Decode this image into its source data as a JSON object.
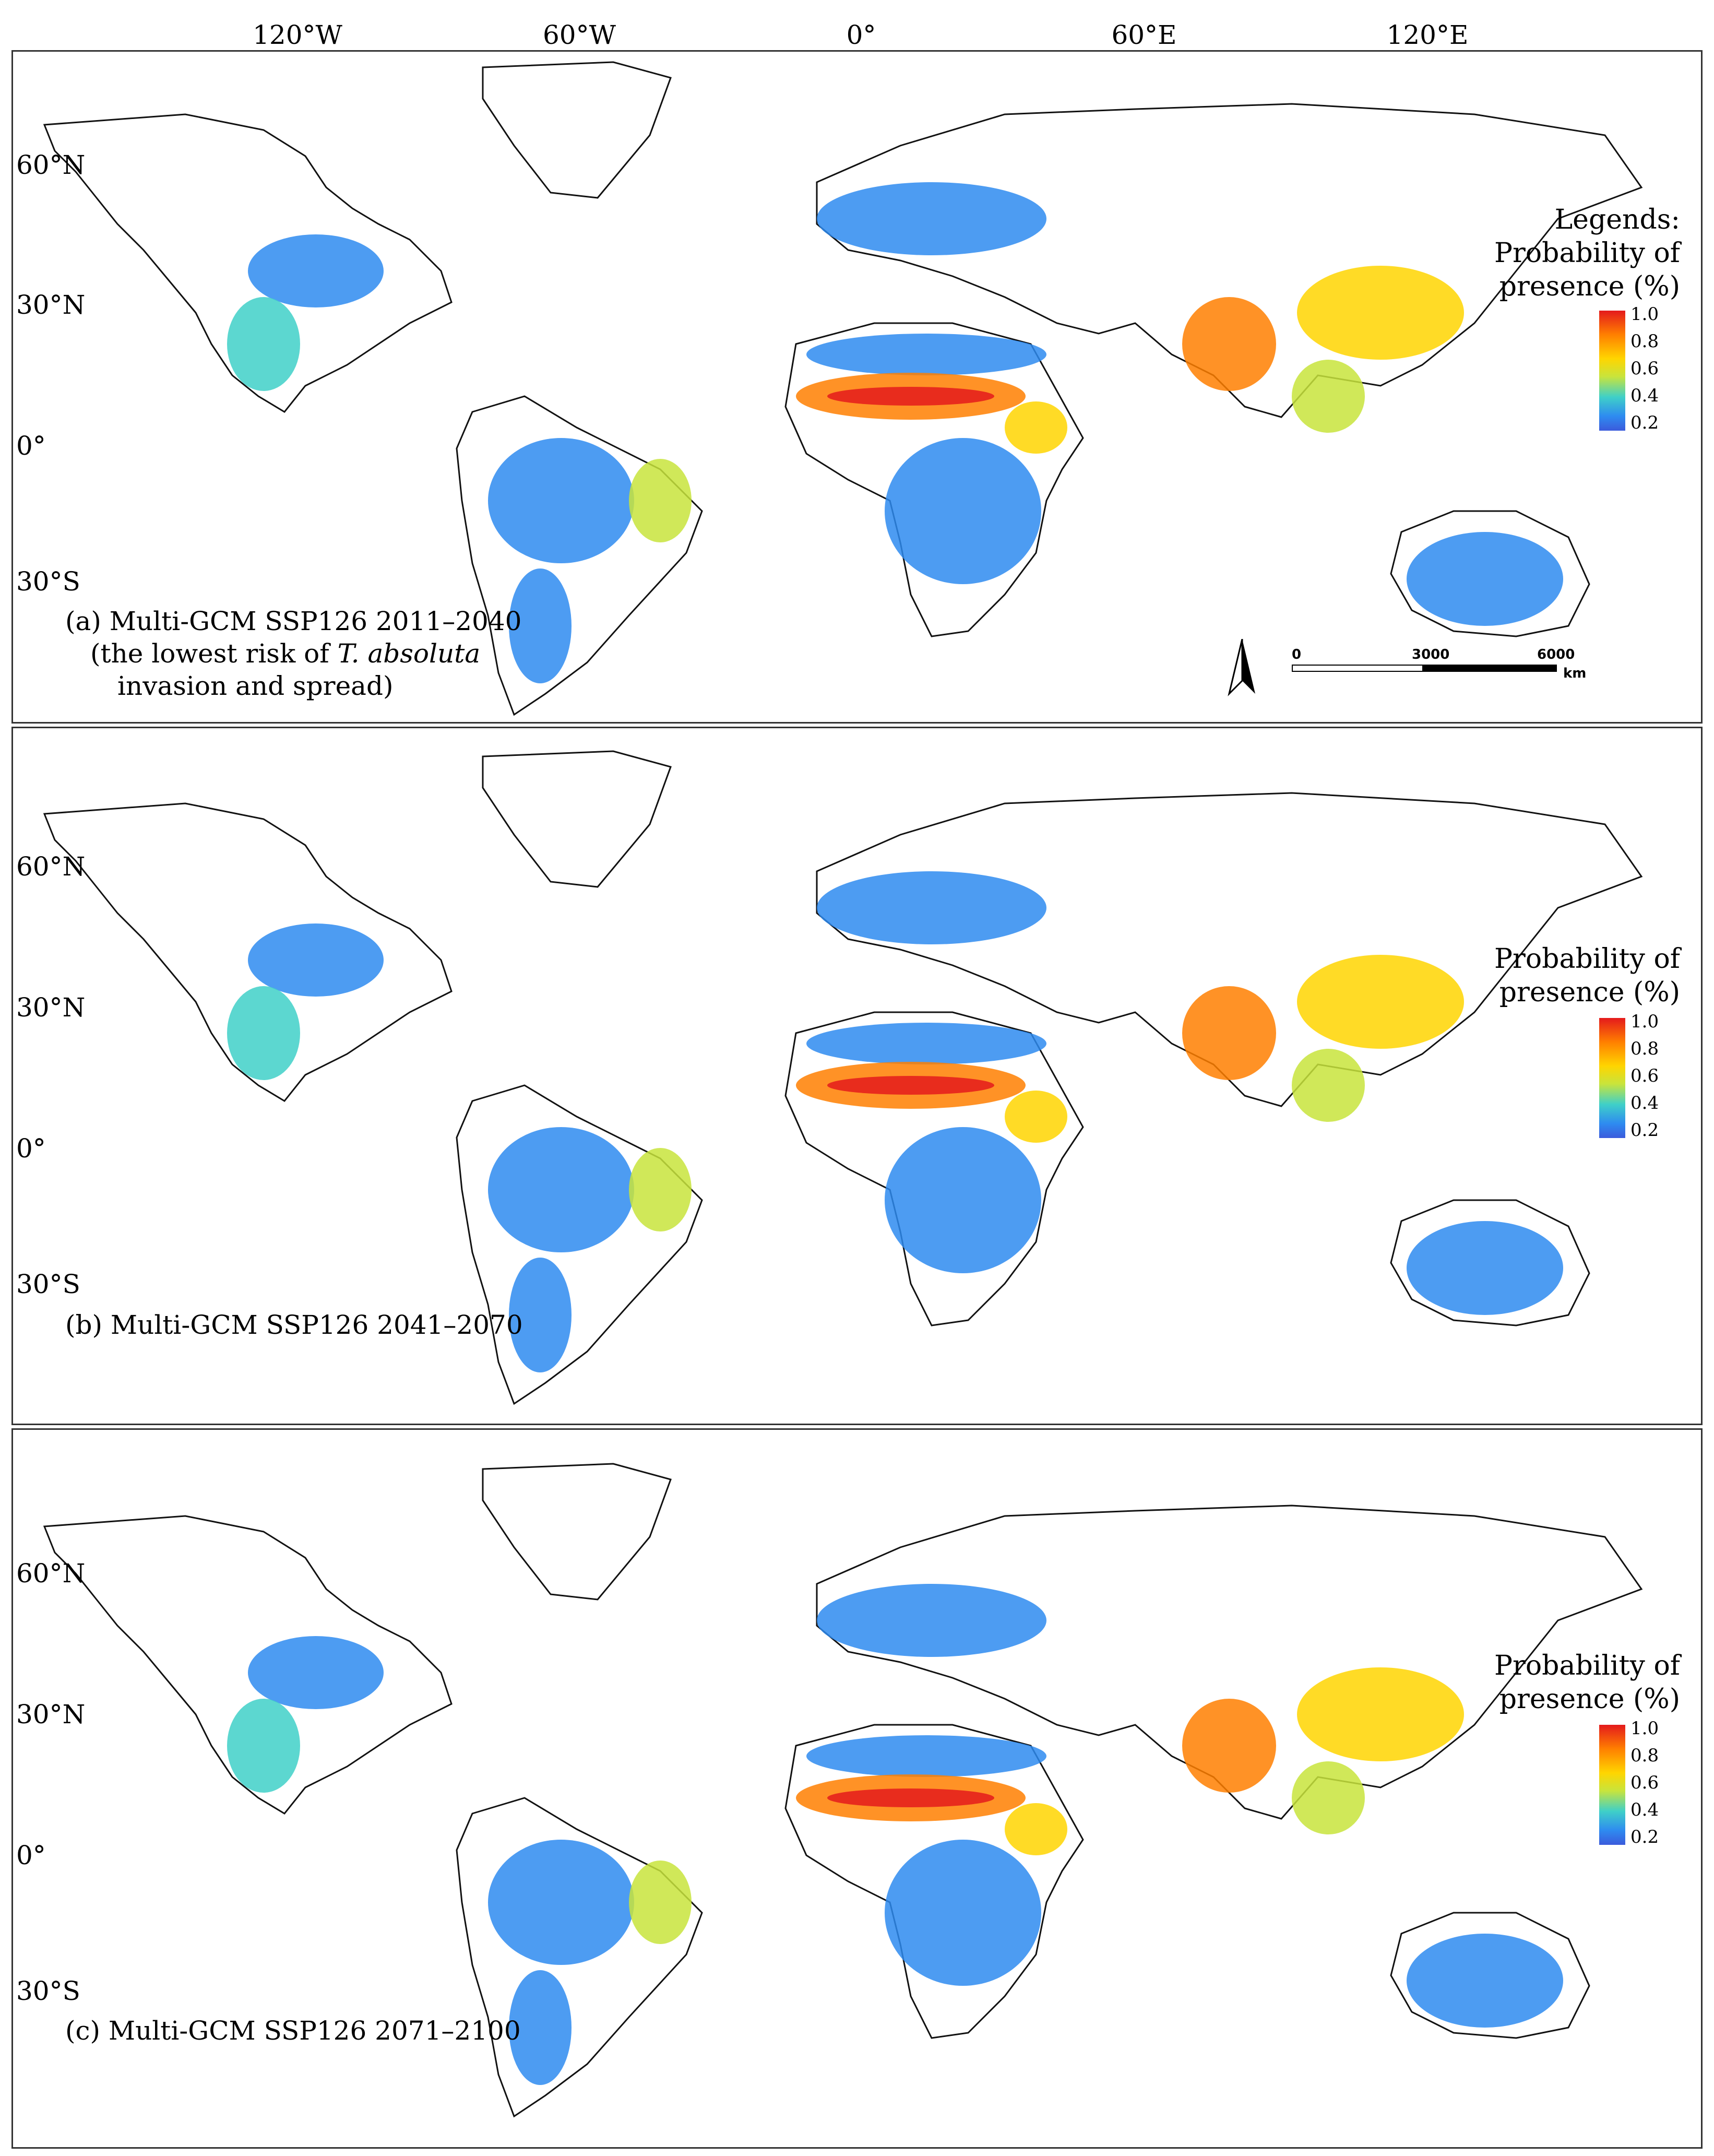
{
  "longitude_labels": [
    "120°W",
    "60°W",
    "0°",
    "60°E",
    "120°E"
  ],
  "latitude_labels": [
    "60°N",
    "30°N",
    "0°",
    "30°S"
  ],
  "legend": {
    "heading": "Legends:",
    "title_line1": "Probability of",
    "title_line2": "presence (%)",
    "ticks": [
      "1.0",
      "0.8",
      "0.6",
      "0.4",
      "0.2"
    ],
    "colors": [
      "#e41a1c",
      "#ff7f00",
      "#ffd500",
      "#c8e43c",
      "#3fd0c8",
      "#2e8bf0",
      "#3b5bdc"
    ]
  },
  "scale_bar": {
    "labels": [
      "0",
      "3000",
      "6000"
    ],
    "unit": "km"
  },
  "panels": [
    {
      "caption_line1": "(a) Multi-GCM SSP126 2011–2040",
      "caption_line2_pre": "(the lowest risk of ",
      "caption_line2_italic": "T. absoluta",
      "caption_line3": "invasion and spread)"
    },
    {
      "caption_line1": "(b) Multi-GCM SSP126 2041–2070"
    },
    {
      "caption_line1": "(c) Multi-GCM SSP126 2071–2100"
    }
  ]
}
